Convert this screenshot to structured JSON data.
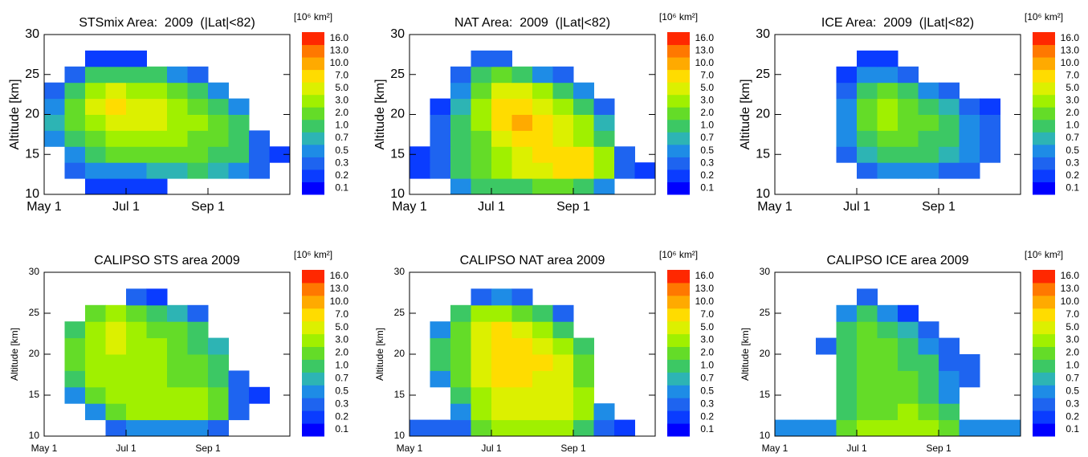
{
  "colorbar": {
    "label": "[10⁶ km²]",
    "ticks": [
      0.1,
      0.2,
      0.3,
      0.5,
      0.7,
      {
        "value": 1,
        "label": "1.0"
      },
      {
        "value": 2,
        "label": "2.0"
      },
      {
        "value": 3,
        "label": "3.0"
      },
      {
        "value": 5,
        "label": "5.0"
      },
      {
        "value": 7,
        "label": "7.0"
      },
      {
        "value": 10,
        "label": "10.0"
      },
      {
        "value": 13,
        "label": "13.0"
      },
      {
        "value": 16,
        "label": "16.0"
      }
    ],
    "colors": [
      "#0000ff",
      "#0a3cff",
      "#1e64f0",
      "#1e8ce6",
      "#2db4b4",
      "#3cc864",
      "#64dc28",
      "#a0f000",
      "#dcf000",
      "#ffdc00",
      "#ffaa00",
      "#ff7800",
      "#ff2800"
    ]
  },
  "chart_data": [
    {
      "type": "heatmap",
      "title": "STSmix Area:  2009  (|Lat|<82)",
      "y_label": "Altitude [km]",
      "categories": [
        "May 1",
        null,
        null,
        null,
        "Jul 1",
        null,
        null,
        null,
        "Sep 1",
        null,
        null,
        null
      ],
      "y_bins": [
        10,
        12,
        14,
        16,
        18,
        20,
        22,
        24,
        26,
        28,
        30
      ],
      "ylim": [
        10,
        30
      ],
      "yticks": [
        10,
        15,
        20,
        25,
        30
      ],
      "z": [
        [
          null,
          null,
          0.2,
          0.2,
          0.2,
          0.2,
          null,
          null,
          null,
          null,
          null,
          null
        ],
        [
          null,
          0.3,
          0.5,
          0.5,
          0.5,
          0.7,
          0.7,
          1,
          0.7,
          0.5,
          0.3,
          null
        ],
        [
          null,
          0.5,
          1,
          2,
          2,
          2,
          2,
          2,
          1,
          1,
          0.3,
          0.2
        ],
        [
          0.5,
          1,
          2,
          3,
          3,
          3,
          3,
          2,
          2,
          1,
          0.3,
          null
        ],
        [
          0.7,
          2,
          3,
          5,
          5,
          5,
          3,
          3,
          2,
          1,
          null,
          null
        ],
        [
          0.5,
          2,
          5,
          7,
          5,
          5,
          3,
          2,
          1,
          0.5,
          null,
          null
        ],
        [
          0.3,
          1,
          3,
          5,
          3,
          3,
          2,
          1,
          0.5,
          null,
          null,
          null
        ],
        [
          null,
          0.3,
          1,
          1,
          1,
          1,
          0.5,
          0.3,
          null,
          null,
          null,
          null
        ],
        [
          null,
          null,
          0.2,
          0.2,
          0.2,
          null,
          null,
          null,
          null,
          null,
          null,
          null
        ],
        [
          null,
          null,
          null,
          null,
          null,
          null,
          null,
          null,
          null,
          null,
          null,
          null
        ]
      ]
    },
    {
      "type": "heatmap",
      "title": "NAT Area:  2009  (|Lat|<82)",
      "y_label": "Altitude [km]",
      "categories": [
        "May 1",
        null,
        null,
        null,
        "Jul 1",
        null,
        null,
        null,
        "Sep 1",
        null,
        null,
        null
      ],
      "y_bins": [
        10,
        12,
        14,
        16,
        18,
        20,
        22,
        24,
        26,
        28,
        30
      ],
      "ylim": [
        10,
        30
      ],
      "yticks": [
        10,
        15,
        20,
        25,
        30
      ],
      "z": [
        [
          null,
          null,
          0.5,
          1,
          1,
          1,
          2,
          2,
          1,
          0.5,
          null,
          null
        ],
        [
          0.2,
          0.3,
          1,
          2,
          3,
          5,
          5,
          7,
          7,
          3,
          0.3,
          0.2
        ],
        [
          0.2,
          0.3,
          1,
          2,
          3,
          5,
          7,
          7,
          7,
          3,
          0.3,
          null
        ],
        [
          null,
          0.3,
          1,
          2,
          5,
          7,
          7,
          5,
          3,
          1,
          null,
          null
        ],
        [
          null,
          0.3,
          1,
          3,
          7,
          10,
          7,
          5,
          3,
          0.7,
          null,
          null
        ],
        [
          null,
          0.2,
          0.7,
          3,
          7,
          7,
          5,
          3,
          1,
          0.3,
          null,
          null
        ],
        [
          null,
          null,
          0.5,
          2,
          5,
          5,
          3,
          1,
          0.5,
          null,
          null,
          null
        ],
        [
          null,
          null,
          0.3,
          1,
          2,
          1,
          0.5,
          0.3,
          null,
          null,
          null,
          null
        ],
        [
          null,
          null,
          null,
          0.3,
          0.3,
          null,
          null,
          null,
          null,
          null,
          null,
          null
        ],
        [
          null,
          null,
          null,
          null,
          null,
          null,
          null,
          null,
          null,
          null,
          null,
          null
        ]
      ]
    },
    {
      "type": "heatmap",
      "title": "ICE Area:  2009  (|Lat|<82)",
      "y_label": "Altitude [km]",
      "categories": [
        "May 1",
        null,
        null,
        null,
        "Jul 1",
        null,
        null,
        null,
        "Sep 1",
        null,
        null,
        null
      ],
      "y_bins": [
        10,
        12,
        14,
        16,
        18,
        20,
        22,
        24,
        26,
        28,
        30
      ],
      "ylim": [
        10,
        30
      ],
      "yticks": [
        10,
        15,
        20,
        25,
        30
      ],
      "z": [
        [
          null,
          null,
          null,
          null,
          null,
          null,
          null,
          null,
          null,
          null,
          null,
          null
        ],
        [
          null,
          null,
          null,
          null,
          0.3,
          0.5,
          0.5,
          0.5,
          0.3,
          0.3,
          null,
          null
        ],
        [
          null,
          null,
          null,
          0.3,
          0.7,
          1,
          1,
          1,
          0.7,
          0.5,
          0.3,
          null
        ],
        [
          null,
          null,
          null,
          0.5,
          1,
          2,
          2,
          1,
          1,
          0.5,
          0.3,
          null
        ],
        [
          null,
          null,
          null,
          0.5,
          2,
          3,
          2,
          2,
          1,
          0.5,
          0.3,
          null
        ],
        [
          null,
          null,
          null,
          0.5,
          2,
          3,
          2,
          1,
          0.7,
          0.3,
          0.2,
          null
        ],
        [
          null,
          null,
          null,
          0.3,
          1,
          2,
          1,
          0.5,
          0.3,
          null,
          null,
          null
        ],
        [
          null,
          null,
          null,
          0.2,
          0.5,
          0.5,
          0.3,
          null,
          null,
          null,
          null,
          null
        ],
        [
          null,
          null,
          null,
          null,
          0.2,
          0.2,
          null,
          null,
          null,
          null,
          null,
          null
        ],
        [
          null,
          null,
          null,
          null,
          null,
          null,
          null,
          null,
          null,
          null,
          null,
          null
        ]
      ]
    },
    {
      "type": "heatmap",
      "title": "CALIPSO STS area 2009",
      "y_label": "Altitude [km]",
      "categories": [
        "May 1",
        null,
        null,
        null,
        "Jul 1",
        null,
        null,
        null,
        "Sep 1",
        null,
        null,
        null
      ],
      "y_bins": [
        10,
        12,
        14,
        16,
        18,
        20,
        22,
        24,
        26,
        28,
        30
      ],
      "ylim": [
        10,
        30
      ],
      "yticks": [
        10,
        15,
        20,
        25,
        30
      ],
      "z": [
        [
          null,
          null,
          null,
          0.3,
          0.5,
          0.5,
          0.5,
          0.5,
          0.3,
          null,
          null,
          null
        ],
        [
          null,
          null,
          0.5,
          2,
          3,
          3,
          3,
          3,
          2,
          0.3,
          null,
          null
        ],
        [
          null,
          0.5,
          2,
          3,
          3,
          3,
          3,
          3,
          2,
          0.3,
          0.2,
          null
        ],
        [
          null,
          1,
          3,
          3,
          3,
          3,
          2,
          2,
          1,
          0.3,
          null,
          null
        ],
        [
          null,
          2,
          3,
          3,
          3,
          3,
          2,
          2,
          1,
          null,
          null,
          null
        ],
        [
          null,
          2,
          3,
          5,
          3,
          3,
          2,
          1,
          0.7,
          null,
          null,
          null
        ],
        [
          null,
          1,
          3,
          5,
          3,
          2,
          2,
          1,
          null,
          null,
          null,
          null
        ],
        [
          null,
          null,
          2,
          3,
          2,
          1,
          0.7,
          0.3,
          null,
          null,
          null,
          null
        ],
        [
          null,
          null,
          null,
          null,
          0.3,
          0.2,
          null,
          null,
          null,
          null,
          null,
          null
        ],
        [
          null,
          null,
          null,
          null,
          null,
          null,
          null,
          null,
          null,
          null,
          null,
          null
        ]
      ]
    },
    {
      "type": "heatmap",
      "title": "CALIPSO NAT area 2009",
      "y_label": "Altitude [km]",
      "categories": [
        "May 1",
        null,
        null,
        null,
        "Jul 1",
        null,
        null,
        null,
        "Sep 1",
        null,
        null,
        null
      ],
      "y_bins": [
        10,
        12,
        14,
        16,
        18,
        20,
        22,
        24,
        26,
        28,
        30
      ],
      "ylim": [
        10,
        30
      ],
      "yticks": [
        10,
        15,
        20,
        25,
        30
      ],
      "z": [
        [
          0.3,
          0.3,
          0.3,
          2,
          3,
          3,
          3,
          3,
          1,
          0.3,
          0.2,
          null
        ],
        [
          null,
          null,
          0.5,
          3,
          5,
          5,
          5,
          5,
          3,
          0.5,
          null,
          null
        ],
        [
          null,
          null,
          1,
          3,
          5,
          5,
          5,
          5,
          3,
          null,
          null,
          null
        ],
        [
          null,
          0.5,
          2,
          5,
          7,
          7,
          5,
          5,
          2,
          null,
          null,
          null
        ],
        [
          null,
          1,
          2,
          5,
          7,
          7,
          7,
          5,
          2,
          null,
          null,
          null
        ],
        [
          null,
          1,
          2,
          5,
          7,
          7,
          5,
          3,
          1,
          null,
          null,
          null
        ],
        [
          null,
          0.5,
          2,
          5,
          7,
          5,
          3,
          1,
          null,
          null,
          null,
          null
        ],
        [
          null,
          null,
          1,
          3,
          3,
          2,
          1,
          0.3,
          null,
          null,
          null,
          null
        ],
        [
          null,
          null,
          null,
          0.3,
          0.5,
          0.3,
          null,
          null,
          null,
          null,
          null,
          null
        ],
        [
          null,
          null,
          null,
          null,
          null,
          null,
          null,
          null,
          null,
          null,
          null,
          null
        ]
      ]
    },
    {
      "type": "heatmap",
      "title": "CALIPSO ICE area 2009",
      "y_label": "Altitude [km]",
      "categories": [
        "May 1",
        null,
        null,
        null,
        "Jul 1",
        null,
        null,
        null,
        "Sep 1",
        null,
        null,
        null
      ],
      "y_bins": [
        10,
        12,
        14,
        16,
        18,
        20,
        22,
        24,
        26,
        28,
        30
      ],
      "ylim": [
        10,
        30
      ],
      "yticks": [
        10,
        15,
        20,
        25,
        30
      ],
      "z": [
        [
          0.5,
          0.5,
          0.5,
          2,
          3,
          3,
          3,
          3,
          2,
          0.5,
          0.5,
          0.5
        ],
        [
          null,
          null,
          null,
          1,
          2,
          2,
          3,
          2,
          1,
          null,
          null,
          null
        ],
        [
          null,
          null,
          null,
          1,
          2,
          2,
          2,
          1,
          0.5,
          null,
          null,
          null
        ],
        [
          null,
          null,
          null,
          1,
          2,
          2,
          2,
          1,
          0.5,
          0.3,
          null,
          null
        ],
        [
          null,
          null,
          null,
          1,
          2,
          2,
          1,
          1,
          0.3,
          0.3,
          null,
          null
        ],
        [
          null,
          null,
          0.3,
          1,
          2,
          2,
          1,
          0.5,
          0.3,
          null,
          null,
          null
        ],
        [
          null,
          null,
          null,
          1,
          2,
          1,
          0.7,
          0.3,
          null,
          null,
          null,
          null
        ],
        [
          null,
          null,
          null,
          0.5,
          1,
          0.5,
          0.2,
          null,
          null,
          null,
          null,
          null
        ],
        [
          null,
          null,
          null,
          null,
          0.3,
          null,
          null,
          null,
          null,
          null,
          null,
          null
        ],
        [
          null,
          null,
          null,
          null,
          null,
          null,
          null,
          null,
          null,
          null,
          null,
          null
        ]
      ]
    }
  ]
}
